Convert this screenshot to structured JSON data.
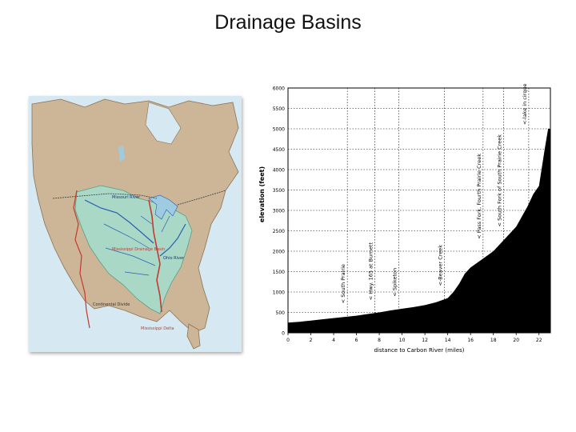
{
  "slide": {
    "title": "Drainage Basins"
  },
  "map": {
    "labels": {
      "missouri_river": "Missouri River",
      "mississippi_basin": "Mississippi Drainage Basin",
      "ohio_river": "Ohio River",
      "continental_divide": "Continental Divide",
      "mississippi_delta": "Mississippi Delta"
    },
    "colors": {
      "land": "#cdb597",
      "basin": "#a9d8c7",
      "water": "#9fcbe0",
      "river": "#2a5db0",
      "divide": "#c23a30",
      "border": "#3a3a3a"
    }
  },
  "chart_data": {
    "type": "area",
    "xlabel": "distance to Carbon River (miles)",
    "ylabel": "elevation (feet)",
    "xlim": [
      0,
      23
    ],
    "ylim": [
      0,
      6000
    ],
    "x_ticks": [
      0,
      2,
      4,
      6,
      8,
      10,
      12,
      14,
      16,
      18,
      20,
      22
    ],
    "y_ticks": [
      0,
      500,
      1000,
      1500,
      2000,
      2500,
      3000,
      3500,
      4000,
      4500,
      5000,
      5500,
      6000
    ],
    "x_tick_labels": [
      "0",
      "2",
      "4",
      "6",
      "8",
      "10",
      "12",
      "14",
      "16",
      "18",
      "20",
      "22"
    ],
    "y_tick_labels": [
      "0",
      "500",
      "1000",
      "1500",
      "2000",
      "2500",
      "3000",
      "3500",
      "4000",
      "4500",
      "5000",
      "5500",
      "6000"
    ],
    "fill_color": "#000000",
    "profile": {
      "x": [
        0,
        1,
        2,
        3,
        4,
        5,
        6,
        7,
        8,
        9,
        10,
        11,
        12,
        13,
        14,
        14.5,
        15,
        15.5,
        16,
        17,
        18,
        19,
        20,
        20.5,
        21,
        21.5,
        22,
        22.5,
        22.8
      ],
      "y": [
        250,
        270,
        300,
        330,
        360,
        390,
        420,
        460,
        500,
        550,
        590,
        630,
        680,
        750,
        850,
        1000,
        1200,
        1450,
        1600,
        1800,
        2000,
        2300,
        2600,
        2850,
        3100,
        3400,
        3600,
        4500,
        5000
      ]
    },
    "annotations": [
      {
        "x": 5.2,
        "label": "< South Prairie"
      },
      {
        "x": 7.6,
        "label": "< Hwy. 165 at Burnett"
      },
      {
        "x": 9.7,
        "label": "< Spiketon"
      },
      {
        "x": 13.7,
        "label": "<-Beaver Creek"
      },
      {
        "x": 17.1,
        "label": "< Pass Fork, Fourth Prairie Creek"
      },
      {
        "x": 18.9,
        "label": "< South Fork of South Prairie Creek"
      },
      {
        "x": 21.1,
        "label": "<-lake in cirque"
      }
    ]
  }
}
